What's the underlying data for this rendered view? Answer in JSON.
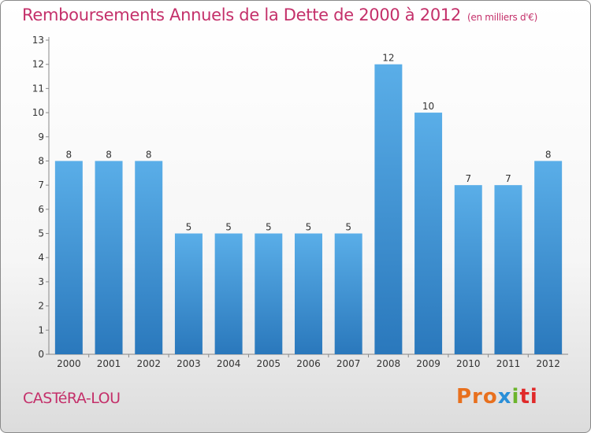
{
  "title": "Remboursements Annuels de la Dette de 2000 à 2012",
  "unit": "(en milliers d'€)",
  "commune": "CASTéRA-LOU",
  "logo": {
    "p1": "Pro",
    "p2": "x",
    "p3": "i",
    "p4": "ti"
  },
  "colors": {
    "bar_top": "#5aaee8",
    "bar_bottom": "#2a78bc",
    "title": "#c4306a"
  },
  "chart_data": {
    "type": "bar",
    "title": "Remboursements Annuels de la Dette de 2000 à 2012",
    "xlabel": "",
    "ylabel": "",
    "categories": [
      "2000",
      "2001",
      "2002",
      "2003",
      "2004",
      "2005",
      "2006",
      "2007",
      "2008",
      "2009",
      "2010",
      "2011",
      "2012"
    ],
    "values": [
      8,
      8,
      8,
      5,
      5,
      5,
      5,
      5,
      12,
      10,
      7,
      7,
      8
    ],
    "ylim": [
      0,
      13
    ],
    "yticks": [
      "0",
      "1",
      "2",
      "3",
      "4",
      "5",
      "6",
      "7",
      "8",
      "9",
      "10",
      "11",
      "12",
      "13"
    ],
    "grid": false,
    "legend": "none"
  }
}
